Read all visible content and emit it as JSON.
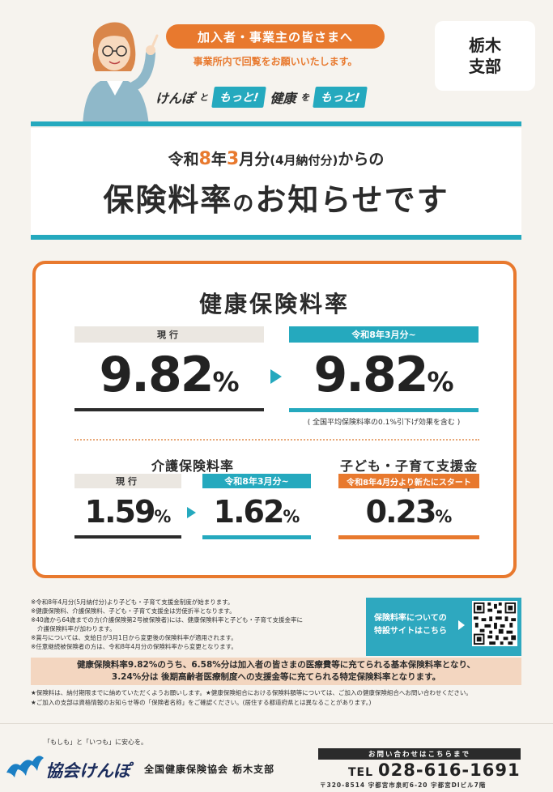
{
  "header": {
    "audience": "加入者・事業主の皆さまへ",
    "circulate_note": "事業所内で回覧をお願いいたします。",
    "slogan": {
      "part1": "けんぽ",
      "to": "と",
      "motto1": "もっと!",
      "part2": "健康",
      "wo": "を",
      "motto2": "もっと!"
    },
    "branch_line1": "栃木",
    "branch_line2": "支部"
  },
  "title": {
    "era": "令和",
    "year": "8",
    "nen": "年",
    "month": "3",
    "getsubun": "月分",
    "paren": "(4月納付分)",
    "kara": "からの",
    "main_a": "保険料率",
    "main_b": "の",
    "main_c": "お知らせです"
  },
  "health": {
    "heading": "健康保険料率",
    "current_label": "現行",
    "current_value": "9.82",
    "new_label": "令和8年3月分~",
    "new_value": "9.82",
    "pct": "%",
    "note": "( 全国平均保険料率の0.1%引下げ効果を含む )"
  },
  "care": {
    "heading": "介護保険料率",
    "current_label": "現行",
    "current_value": "1.59",
    "new_label": "令和8年3月分~",
    "new_value": "1.62",
    "pct": "%"
  },
  "child": {
    "heading": "子ども・子育て支援金率",
    "label": "令和8年4月分より新たにスタート",
    "value": "0.23",
    "pct": "%"
  },
  "notes": [
    "※令和8年4月分(5月納付分)より子ども・子育て支援金制度が始まります。",
    "※健康保険料、介護保険料、子ども・子育て支援金は労使折半となります。",
    "※40歳から64歳までの方(介護保険第2号被保険者)には、健康保険料率と子ども・子育て支援金率に",
    "介護保険料率が加わります。",
    "※賞与については、支給日が3月1日から変更後の保険料率が適用されます。",
    "※任意継続被保険者の方は、令和8年4月分の保険料率から変更となります。"
  ],
  "site": {
    "line1": "保険料率についての",
    "line2": "特設サイトはこちら"
  },
  "summary": {
    "line1": "健康保険料率9.82%のうち、6.58%分は加入者の皆さまの医療費等に充てられる基本保険料率となり、",
    "line2": "3.24%分は 後期高齢者医療制度への支援金等に充てられる特定保険料率となります。"
  },
  "footnotes": [
    "★保険料は、納付期限までに納めていただくようお願いします。★健康保険組合における保険料額等については、ご加入の健康保険組合へお問い合わせください。",
    "★ご加入の支部は資格情報のお知らせ等の「保険者名称」をご確認ください。(居住する都道府県とは異なることがあります。)"
  ],
  "footer": {
    "tagline": "「もしも」と「いつも」に安心を。",
    "logo": "協会けんぽ",
    "org": "全国健康保険協会 栃木支部",
    "contact_label": "お問い合わせはこちらまで",
    "tel_label": "TEL",
    "tel": "028-616-1691",
    "address": "〒320-8514 宇都宮市泉町6-20 宇都宮DIビル7階"
  },
  "colors": {
    "accent_orange": "#e8792e",
    "accent_teal": "#25a9be",
    "background": "#f6f3ee"
  }
}
